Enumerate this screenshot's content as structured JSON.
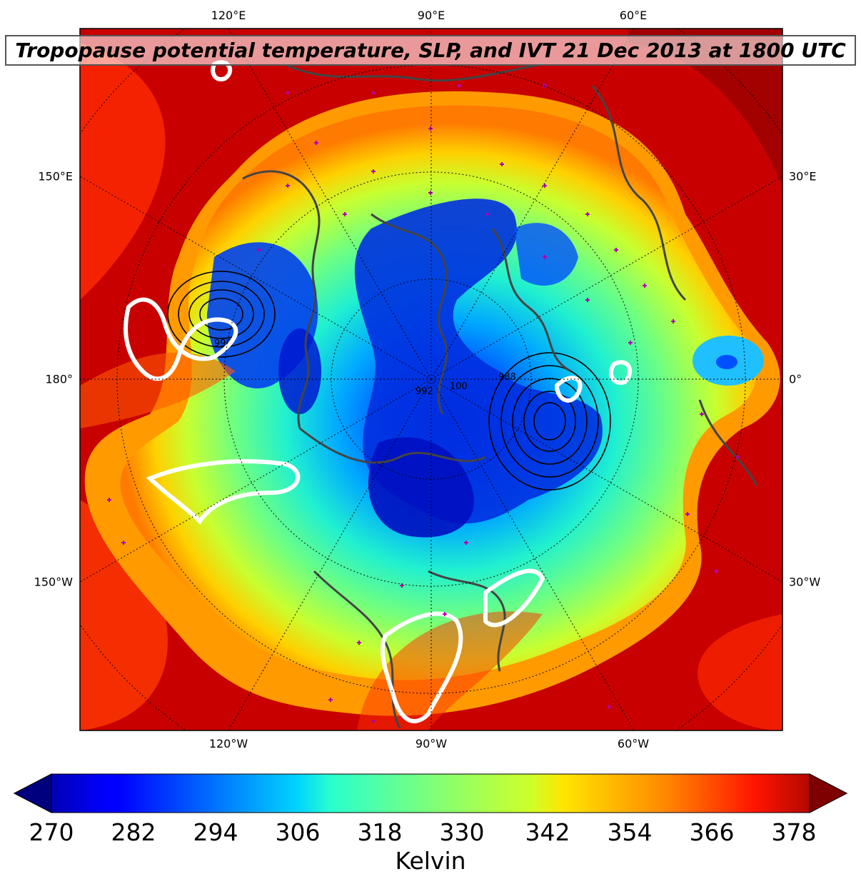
{
  "title": "Tropopause potential temperature, SLP, and IVT 21 Dec 2013 at 1800 UTC",
  "map": {
    "projection": "north-polar-stereographic",
    "field": "tropopause potential temperature",
    "overlays": [
      "SLP contours (black)",
      "IVT contours (white)",
      "coastlines",
      "country borders",
      "station markers (magenta +)"
    ],
    "graticule_labels": {
      "top": [
        "120°E",
        "90°E",
        "60°E"
      ],
      "left": [
        "150°E",
        "180°",
        "150°W"
      ],
      "right": [
        "30°E",
        "0°",
        "30°W"
      ],
      "bottom": [
        "120°W",
        "90°W",
        "60°W"
      ]
    },
    "slp_contour_labels": [
      "992",
      "100",
      "988",
      "996"
    ],
    "colors": {
      "frame": "#000000",
      "coastline": "#444444",
      "station_marker": "#b000b0",
      "ivt_contour": "#ffffff",
      "slp_contour": "#000000"
    }
  },
  "colorbar": {
    "colormap": "jet",
    "extend": "both",
    "ticks": [
      "270",
      "282",
      "294",
      "306",
      "318",
      "330",
      "342",
      "354",
      "366",
      "378"
    ],
    "range": [
      270,
      381
    ],
    "label": "Kelvin"
  }
}
